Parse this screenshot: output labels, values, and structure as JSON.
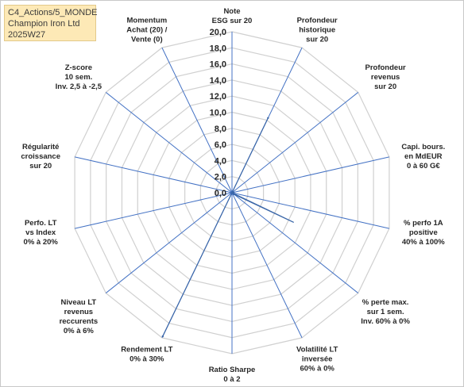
{
  "info": {
    "line1": "C4_Actions/5_MONDE",
    "line2": "Champion Iron Ltd",
    "line3": "2025W27"
  },
  "chart_data": {
    "type": "radar",
    "r_ticks": [
      "0,0",
      "2,0",
      "4,0",
      "6,0",
      "8,0",
      "10,0",
      "12,0",
      "14,0",
      "16,0",
      "18,0",
      "20,0"
    ],
    "r_range": [
      0,
      20
    ],
    "grid": true,
    "axes": [
      {
        "lines": [
          "Note",
          "ESG sur 20"
        ],
        "value": 0
      },
      {
        "lines": [
          "Profondeur",
          "historique",
          "sur 20"
        ],
        "value": 10.3
      },
      {
        "lines": [
          "Profondeur",
          "revenus",
          "sur 20"
        ],
        "value": 0
      },
      {
        "lines": [
          "Capi. bours.",
          "en MdEUR",
          "0 à 60 G€"
        ],
        "value": 0.2
      },
      {
        "lines": [
          "% perfo 1A",
          "positive",
          "40% à 100%"
        ],
        "value": 0
      },
      {
        "lines": [
          "% perte max.",
          "sur 1 sem.",
          "Inv. 60% à 0%"
        ],
        "value": 0.3
      },
      {
        "lines": [
          "Volatilité LT",
          "inversée",
          "60% à 0%"
        ],
        "value": 0
      },
      {
        "lines": [
          "Ratio Sharpe",
          "0 à 2"
        ],
        "value": 0
      },
      {
        "lines": [
          "Rendement LT",
          "0% à 30%"
        ],
        "value": 19.8
      },
      {
        "lines": [
          "Niveau LT",
          "revenus",
          "reccurents",
          "0% à 6%"
        ],
        "value": 0
      },
      {
        "lines": [
          "Perfo. LT",
          "vs Index",
          "0% à 20%"
        ],
        "value": 0
      },
      {
        "lines": [
          "Régularité",
          "croissance",
          "sur 20"
        ],
        "value": 0
      },
      {
        "lines": [
          "Z-score",
          "10 sem.",
          "Inv. 2,5 à -2,5"
        ],
        "value": 0
      },
      {
        "lines": [
          "Momentum",
          "Achat (20) /",
          "Vente (0)"
        ],
        "value": 0
      }
    ],
    "extra_points": [
      {
        "between": [
          4,
          5
        ],
        "note": "bulge",
        "value": 8.5
      }
    ],
    "colors": {
      "fill": "#5b86c2",
      "stroke": "#3a66a8",
      "grid": "#d0d0d0",
      "axis": "#4472c4"
    }
  }
}
